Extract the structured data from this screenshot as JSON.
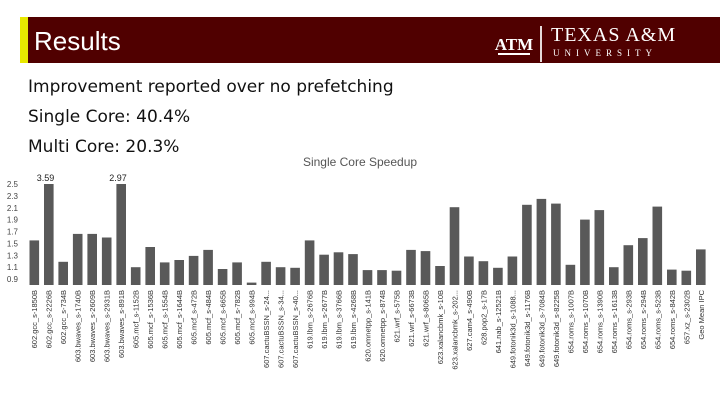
{
  "header": {
    "title": "Results",
    "university": "TEXAS A&M",
    "university_sub": "UNIVERSITY",
    "logo_monogram": "ATM"
  },
  "bullets": {
    "line1": "Improvement reported over no prefetching",
    "line2": "Single Core: 40.4%",
    "line3": "Multi Core: 20.3%"
  },
  "colors": {
    "maroon": "#500000",
    "accent": "#e8e800",
    "bar": "#595959"
  },
  "chart_data": {
    "type": "bar",
    "title": "Single Core Speedup",
    "xlabel": "",
    "ylabel": "",
    "ylim": [
      0.8,
      2.5
    ],
    "yticks": [
      0.9,
      1.1,
      1.3,
      1.5,
      1.7,
      1.9,
      2.1,
      2.3,
      2.5
    ],
    "grid": false,
    "clipped_labels": [
      {
        "category": "602.gcc_s-2226B",
        "label": "3.59"
      },
      {
        "category": "603.bwaves_s-891B",
        "label": "2.97"
      }
    ],
    "categories": [
      "602.gcc_s-1850B",
      "602.gcc_s-2226B",
      "602.gcc_s-734B",
      "603.bwaves_s-1740B",
      "603.bwaves_s-2609B",
      "603.bwaves_s-2931B",
      "603.bwaves_s-891B",
      "605.mcf_s-1152B",
      "605.mcf_s-1536B",
      "605.mcf_s-1554B",
      "605.mcf_s-1644B",
      "605.mcf_s-472B",
      "605.mcf_s-484B",
      "605.mcf_s-665B",
      "605.mcf_s-782B",
      "605.mcf_s-994B",
      "607.cactuBSSN_s-24...",
      "607.cactuBSSN_s-34...",
      "607.cactuBSSN_s-40...",
      "619.lbm_s-2676B",
      "619.lbm_s-2677B",
      "619.lbm_s-3766B",
      "619.lbm_s-4268B",
      "620.omnetpp_s-141B",
      "620.omnetpp_s-874B",
      "621.wrf_s-575B",
      "621.wrf_s-6673B",
      "621.wrf_s-8065B",
      "623.xalancbmk_s-10B",
      "623.xalancbmk_s-202...",
      "627.cam4_s-490B",
      "628.pop2_s-17B",
      "641.nab_s-12521B",
      "649.fotonik3d_s-1088...",
      "649.fotonik3d_s-1176B",
      "649.fotonik3d_s-7084B",
      "649.fotonik3d_s-8225B",
      "654.roms_s-1007B",
      "654.roms_s-1070B",
      "654.roms_s-1390B",
      "654.roms_s-1613B",
      "654.roms_s-293B",
      "654.roms_s-294B",
      "654.roms_s-523B",
      "654.roms_s-842B",
      "657.xz_s-2302B",
      "Geo Mean IPC"
    ],
    "values": [
      1.55,
      2.5,
      1.19,
      1.66,
      1.66,
      1.6,
      2.5,
      1.1,
      1.44,
      1.18,
      1.22,
      1.29,
      1.39,
      1.07,
      1.18,
      0.84,
      1.19,
      1.1,
      1.09,
      1.55,
      1.31,
      1.35,
      1.32,
      1.05,
      1.05,
      1.04,
      1.39,
      1.37,
      1.12,
      2.11,
      1.28,
      1.2,
      1.09,
      1.28,
      2.15,
      2.25,
      2.17,
      1.14,
      1.9,
      2.06,
      1.1,
      1.47,
      1.59,
      2.12,
      1.06,
      1.04,
      1.4
    ]
  }
}
